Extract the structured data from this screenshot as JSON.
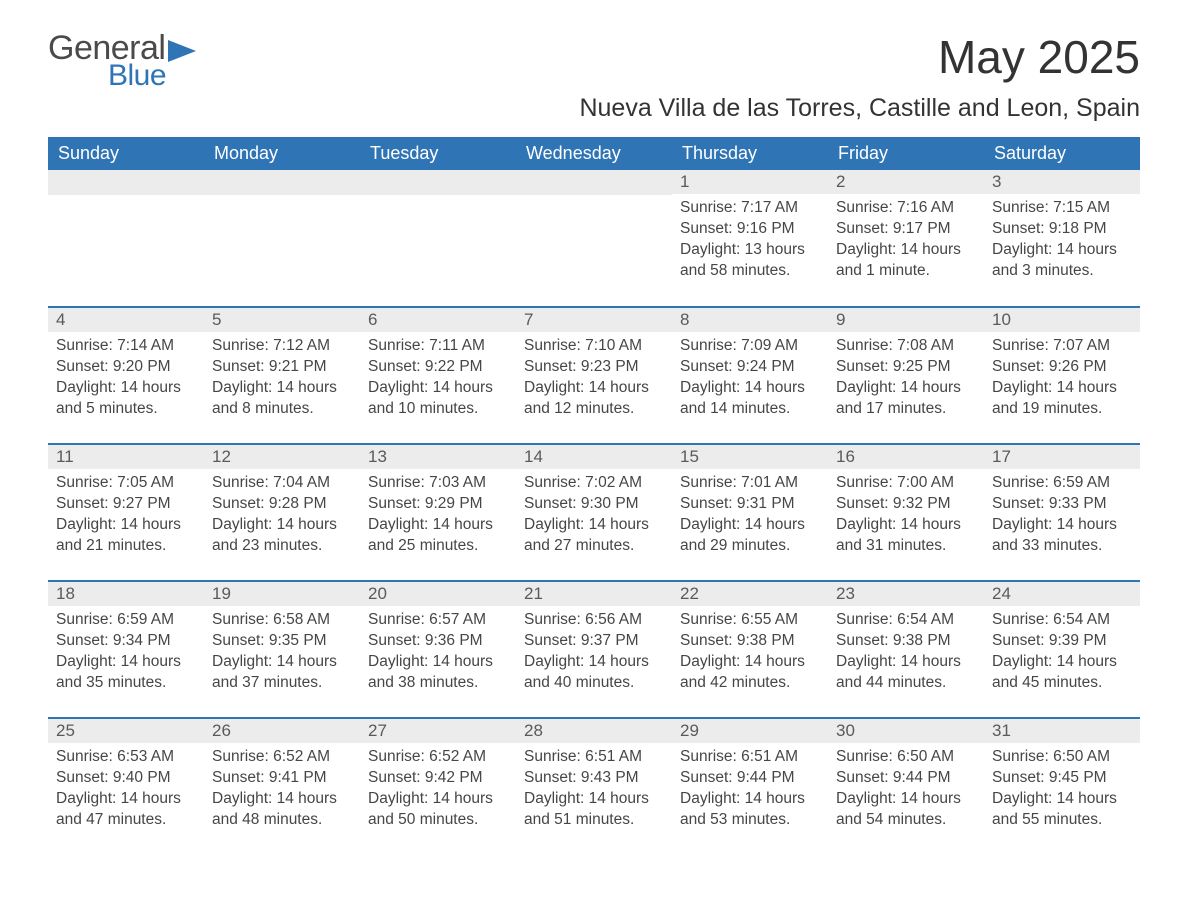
{
  "logo": {
    "word1": "General",
    "word2": "Blue",
    "flag_color": "#2f74b5"
  },
  "title": "May 2025",
  "subtitle": "Nueva Villa de las Torres, Castille and Leon, Spain",
  "colors": {
    "header_bg": "#2f74b5",
    "header_text": "#ffffff",
    "daynum_bg": "#ececec",
    "body_text": "#464646",
    "row_divider": "#2f74b5"
  },
  "fonts": {
    "title_size": 46,
    "subtitle_size": 25,
    "header_size": 18,
    "cell_size": 15.5
  },
  "weekdays": [
    "Sunday",
    "Monday",
    "Tuesday",
    "Wednesday",
    "Thursday",
    "Friday",
    "Saturday"
  ],
  "weeks": [
    [
      null,
      null,
      null,
      null,
      {
        "n": "1",
        "sunrise": "Sunrise: 7:17 AM",
        "sunset": "Sunset: 9:16 PM",
        "dl1": "Daylight: 13 hours",
        "dl2": "and 58 minutes."
      },
      {
        "n": "2",
        "sunrise": "Sunrise: 7:16 AM",
        "sunset": "Sunset: 9:17 PM",
        "dl1": "Daylight: 14 hours",
        "dl2": "and 1 minute."
      },
      {
        "n": "3",
        "sunrise": "Sunrise: 7:15 AM",
        "sunset": "Sunset: 9:18 PM",
        "dl1": "Daylight: 14 hours",
        "dl2": "and 3 minutes."
      }
    ],
    [
      {
        "n": "4",
        "sunrise": "Sunrise: 7:14 AM",
        "sunset": "Sunset: 9:20 PM",
        "dl1": "Daylight: 14 hours",
        "dl2": "and 5 minutes."
      },
      {
        "n": "5",
        "sunrise": "Sunrise: 7:12 AM",
        "sunset": "Sunset: 9:21 PM",
        "dl1": "Daylight: 14 hours",
        "dl2": "and 8 minutes."
      },
      {
        "n": "6",
        "sunrise": "Sunrise: 7:11 AM",
        "sunset": "Sunset: 9:22 PM",
        "dl1": "Daylight: 14 hours",
        "dl2": "and 10 minutes."
      },
      {
        "n": "7",
        "sunrise": "Sunrise: 7:10 AM",
        "sunset": "Sunset: 9:23 PM",
        "dl1": "Daylight: 14 hours",
        "dl2": "and 12 minutes."
      },
      {
        "n": "8",
        "sunrise": "Sunrise: 7:09 AM",
        "sunset": "Sunset: 9:24 PM",
        "dl1": "Daylight: 14 hours",
        "dl2": "and 14 minutes."
      },
      {
        "n": "9",
        "sunrise": "Sunrise: 7:08 AM",
        "sunset": "Sunset: 9:25 PM",
        "dl1": "Daylight: 14 hours",
        "dl2": "and 17 minutes."
      },
      {
        "n": "10",
        "sunrise": "Sunrise: 7:07 AM",
        "sunset": "Sunset: 9:26 PM",
        "dl1": "Daylight: 14 hours",
        "dl2": "and 19 minutes."
      }
    ],
    [
      {
        "n": "11",
        "sunrise": "Sunrise: 7:05 AM",
        "sunset": "Sunset: 9:27 PM",
        "dl1": "Daylight: 14 hours",
        "dl2": "and 21 minutes."
      },
      {
        "n": "12",
        "sunrise": "Sunrise: 7:04 AM",
        "sunset": "Sunset: 9:28 PM",
        "dl1": "Daylight: 14 hours",
        "dl2": "and 23 minutes."
      },
      {
        "n": "13",
        "sunrise": "Sunrise: 7:03 AM",
        "sunset": "Sunset: 9:29 PM",
        "dl1": "Daylight: 14 hours",
        "dl2": "and 25 minutes."
      },
      {
        "n": "14",
        "sunrise": "Sunrise: 7:02 AM",
        "sunset": "Sunset: 9:30 PM",
        "dl1": "Daylight: 14 hours",
        "dl2": "and 27 minutes."
      },
      {
        "n": "15",
        "sunrise": "Sunrise: 7:01 AM",
        "sunset": "Sunset: 9:31 PM",
        "dl1": "Daylight: 14 hours",
        "dl2": "and 29 minutes."
      },
      {
        "n": "16",
        "sunrise": "Sunrise: 7:00 AM",
        "sunset": "Sunset: 9:32 PM",
        "dl1": "Daylight: 14 hours",
        "dl2": "and 31 minutes."
      },
      {
        "n": "17",
        "sunrise": "Sunrise: 6:59 AM",
        "sunset": "Sunset: 9:33 PM",
        "dl1": "Daylight: 14 hours",
        "dl2": "and 33 minutes."
      }
    ],
    [
      {
        "n": "18",
        "sunrise": "Sunrise: 6:59 AM",
        "sunset": "Sunset: 9:34 PM",
        "dl1": "Daylight: 14 hours",
        "dl2": "and 35 minutes."
      },
      {
        "n": "19",
        "sunrise": "Sunrise: 6:58 AM",
        "sunset": "Sunset: 9:35 PM",
        "dl1": "Daylight: 14 hours",
        "dl2": "and 37 minutes."
      },
      {
        "n": "20",
        "sunrise": "Sunrise: 6:57 AM",
        "sunset": "Sunset: 9:36 PM",
        "dl1": "Daylight: 14 hours",
        "dl2": "and 38 minutes."
      },
      {
        "n": "21",
        "sunrise": "Sunrise: 6:56 AM",
        "sunset": "Sunset: 9:37 PM",
        "dl1": "Daylight: 14 hours",
        "dl2": "and 40 minutes."
      },
      {
        "n": "22",
        "sunrise": "Sunrise: 6:55 AM",
        "sunset": "Sunset: 9:38 PM",
        "dl1": "Daylight: 14 hours",
        "dl2": "and 42 minutes."
      },
      {
        "n": "23",
        "sunrise": "Sunrise: 6:54 AM",
        "sunset": "Sunset: 9:38 PM",
        "dl1": "Daylight: 14 hours",
        "dl2": "and 44 minutes."
      },
      {
        "n": "24",
        "sunrise": "Sunrise: 6:54 AM",
        "sunset": "Sunset: 9:39 PM",
        "dl1": "Daylight: 14 hours",
        "dl2": "and 45 minutes."
      }
    ],
    [
      {
        "n": "25",
        "sunrise": "Sunrise: 6:53 AM",
        "sunset": "Sunset: 9:40 PM",
        "dl1": "Daylight: 14 hours",
        "dl2": "and 47 minutes."
      },
      {
        "n": "26",
        "sunrise": "Sunrise: 6:52 AM",
        "sunset": "Sunset: 9:41 PM",
        "dl1": "Daylight: 14 hours",
        "dl2": "and 48 minutes."
      },
      {
        "n": "27",
        "sunrise": "Sunrise: 6:52 AM",
        "sunset": "Sunset: 9:42 PM",
        "dl1": "Daylight: 14 hours",
        "dl2": "and 50 minutes."
      },
      {
        "n": "28",
        "sunrise": "Sunrise: 6:51 AM",
        "sunset": "Sunset: 9:43 PM",
        "dl1": "Daylight: 14 hours",
        "dl2": "and 51 minutes."
      },
      {
        "n": "29",
        "sunrise": "Sunrise: 6:51 AM",
        "sunset": "Sunset: 9:44 PM",
        "dl1": "Daylight: 14 hours",
        "dl2": "and 53 minutes."
      },
      {
        "n": "30",
        "sunrise": "Sunrise: 6:50 AM",
        "sunset": "Sunset: 9:44 PM",
        "dl1": "Daylight: 14 hours",
        "dl2": "and 54 minutes."
      },
      {
        "n": "31",
        "sunrise": "Sunrise: 6:50 AM",
        "sunset": "Sunset: 9:45 PM",
        "dl1": "Daylight: 14 hours",
        "dl2": "and 55 minutes."
      }
    ]
  ]
}
